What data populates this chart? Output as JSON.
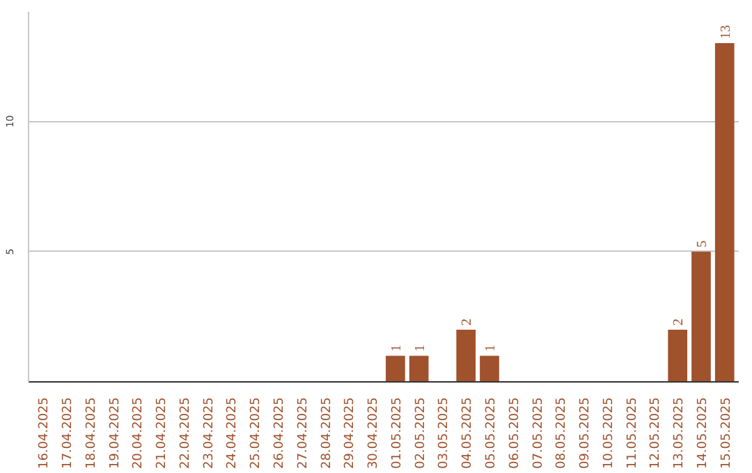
{
  "chart_data": {
    "type": "bar",
    "categories": [
      "16.04.2025",
      "17.04.2025",
      "18.04.2025",
      "19.04.2025",
      "20.04.2025",
      "21.04.2025",
      "22.04.2025",
      "23.04.2025",
      "24.04.2025",
      "25.04.2025",
      "26.04.2025",
      "27.04.2025",
      "28.04.2025",
      "29.04.2025",
      "30.04.2025",
      "01.05.2025",
      "02.05.2025",
      "03.05.2025",
      "04.05.2025",
      "05.05.2025",
      "06.05.2025",
      "07.05.2025",
      "08.05.2025",
      "09.05.2025",
      "10.05.2025",
      "11.05.2025",
      "12.05.2025",
      "13.05.2025",
      "14.05.2025",
      "15.05.2025"
    ],
    "values": [
      0,
      0,
      0,
      0,
      0,
      0,
      0,
      0,
      0,
      0,
      0,
      0,
      0,
      0,
      0,
      1,
      1,
      0,
      2,
      1,
      0,
      0,
      0,
      0,
      0,
      0,
      0,
      2,
      5,
      13
    ],
    "value_labels": [
      null,
      null,
      null,
      null,
      null,
      null,
      null,
      null,
      null,
      null,
      null,
      null,
      null,
      null,
      null,
      "1",
      "1",
      null,
      "2",
      "1",
      null,
      null,
      null,
      null,
      null,
      null,
      null,
      "2",
      "5",
      "13"
    ],
    "color": "#a0522d",
    "ylim": [
      0,
      14.2
    ],
    "yticks": [
      5,
      10
    ],
    "grid": "y"
  }
}
